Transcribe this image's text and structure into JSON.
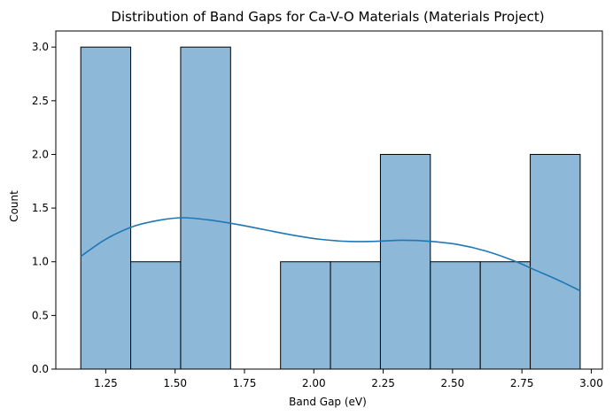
{
  "chart_data": {
    "type": "bar",
    "title": "Distribution of Band Gaps for Ca-V-O Materials (Materials Project)",
    "xlabel": "Band Gap (eV)",
    "ylabel": "Count",
    "xlim": [
      1.07,
      3.04
    ],
    "ylim": [
      0,
      3.15
    ],
    "x_ticks": [
      "1.25",
      "1.50",
      "1.75",
      "2.00",
      "2.25",
      "2.50",
      "2.75",
      "3.00"
    ],
    "y_ticks": [
      "0.0",
      "0.5",
      "1.0",
      "1.5",
      "2.0",
      "2.5",
      "3.0"
    ],
    "bins": [
      {
        "x0": 1.16,
        "x1": 1.34,
        "count": 3
      },
      {
        "x0": 1.34,
        "x1": 1.52,
        "count": 1
      },
      {
        "x0": 1.52,
        "x1": 1.7,
        "count": 3
      },
      {
        "x0": 1.7,
        "x1": 1.88,
        "count": 0
      },
      {
        "x0": 1.88,
        "x1": 2.06,
        "count": 1
      },
      {
        "x0": 2.06,
        "x1": 2.24,
        "count": 1
      },
      {
        "x0": 2.24,
        "x1": 2.42,
        "count": 2
      },
      {
        "x0": 2.42,
        "x1": 2.6,
        "count": 1
      },
      {
        "x0": 2.6,
        "x1": 2.78,
        "count": 1
      },
      {
        "x0": 2.78,
        "x1": 2.96,
        "count": 2
      }
    ],
    "kde": {
      "x": [
        1.16,
        1.25,
        1.35,
        1.45,
        1.53,
        1.62,
        1.72,
        1.82,
        1.92,
        2.02,
        2.12,
        2.22,
        2.32,
        2.42,
        2.52,
        2.62,
        2.72,
        2.8,
        2.88,
        2.96
      ],
      "y": [
        1.05,
        1.21,
        1.33,
        1.39,
        1.41,
        1.39,
        1.35,
        1.3,
        1.25,
        1.21,
        1.19,
        1.19,
        1.2,
        1.19,
        1.16,
        1.1,
        1.01,
        0.92,
        0.83,
        0.73
      ]
    },
    "bar_color": "#8db8d8",
    "bar_edge_color": "#000000",
    "line_color": "#1f77b4",
    "grid": false
  }
}
